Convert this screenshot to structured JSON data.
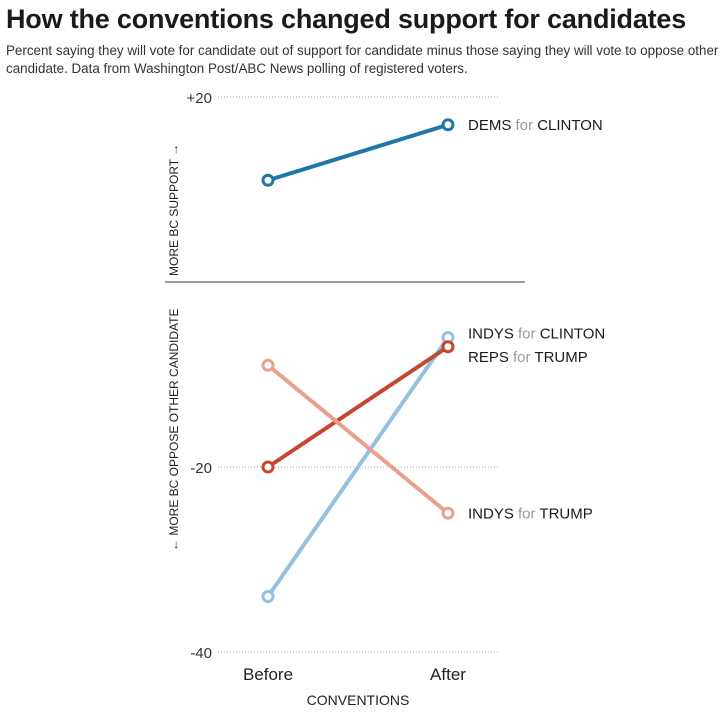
{
  "title": "How the conventions changed support for candidates",
  "subtitle": "Percent saying they will vote for candidate out of support for candidate minus those saying they will vote to oppose other candidate. Data from Washington Post/ABC News polling of registered voters.",
  "chart_data": {
    "type": "line",
    "title": "How the conventions changed support for candidates",
    "xlabel": "CONVENTIONS",
    "ylabel_up": "MORE BC SUPPORT →",
    "ylabel_down": "← MORE BC OPPOSE OTHER CANDIDATE",
    "categories": [
      "Before",
      "After"
    ],
    "ylim": [
      -40,
      20
    ],
    "yticks": [
      20,
      -20,
      -40
    ],
    "ytick_labels": [
      "+20",
      "-20",
      "-40"
    ],
    "grid": true,
    "series": [
      {
        "name": "DEMS for CLINTON",
        "group": "DEMS",
        "for": "for",
        "candidate": "CLINTON",
        "values": [
          11,
          17
        ],
        "color": "#1f77a8"
      },
      {
        "name": "INDYS for CLINTON",
        "group": "INDYS",
        "for": "for",
        "candidate": "CLINTON",
        "values": [
          -34,
          -6
        ],
        "color": "#92c1e2"
      },
      {
        "name": "REPS for TRUMP",
        "group": "REPS",
        "for": "for",
        "candidate": "TRUMP",
        "values": [
          -20,
          -7
        ],
        "color": "#c5472f"
      },
      {
        "name": "INDYS for TRUMP",
        "group": "INDYS",
        "for": "for",
        "candidate": "TRUMP",
        "values": [
          -9,
          -25
        ],
        "color": "#e9a18d"
      }
    ]
  }
}
